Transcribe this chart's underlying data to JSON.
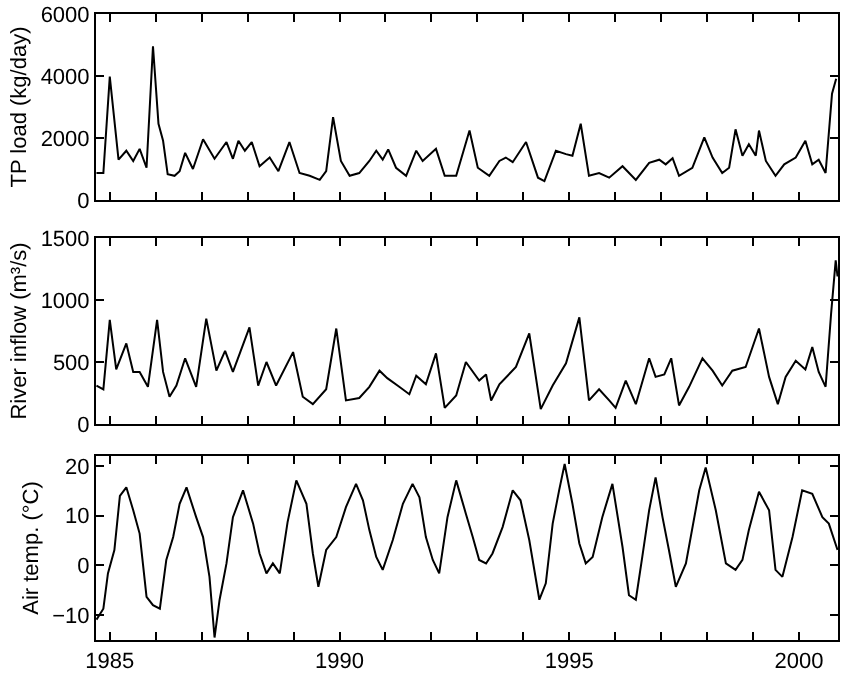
{
  "chart_data": [
    {
      "type": "line",
      "ylabel": "TP load (kg/day)",
      "tick_labels": "y",
      "xlim": [
        1984.7,
        2000.85
      ],
      "ylim": [
        0,
        6000
      ],
      "yticks": [
        0,
        2000,
        4000,
        6000
      ],
      "xticks": [
        {
          "value": 1985,
          "label": null
        },
        {
          "value": 1986,
          "label": null
        },
        {
          "value": 1987,
          "label": null
        },
        {
          "value": 1988,
          "label": null
        },
        {
          "value": 1989,
          "label": null
        },
        {
          "value": 1990,
          "label": null
        },
        {
          "value": 1991,
          "label": null
        },
        {
          "value": 1992,
          "label": null
        },
        {
          "value": 1993,
          "label": null
        },
        {
          "value": 1994,
          "label": null
        },
        {
          "value": 1995,
          "label": null
        },
        {
          "value": 1996,
          "label": null
        },
        {
          "value": 1997,
          "label": null
        },
        {
          "value": 1998,
          "label": null
        },
        {
          "value": 1999,
          "label": null
        },
        {
          "value": 2000,
          "label": null
        }
      ],
      "x": [
        1984.71,
        1984.86,
        1985.0,
        1985.19,
        1985.36,
        1985.51,
        1985.65,
        1985.8,
        1985.94,
        1986.06,
        1986.16,
        1986.26,
        1986.41,
        1986.52,
        1986.64,
        1986.81,
        1987.03,
        1987.28,
        1987.54,
        1987.68,
        1987.8,
        1987.94,
        1988.09,
        1988.26,
        1988.48,
        1988.67,
        1988.91,
        1989.13,
        1989.35,
        1989.57,
        1989.71,
        1989.86,
        1990.03,
        1990.22,
        1990.43,
        1990.65,
        1990.8,
        1990.94,
        1991.06,
        1991.23,
        1991.45,
        1991.67,
        1991.81,
        1992.1,
        1992.29,
        1992.54,
        1992.83,
        1993.01,
        1993.26,
        1993.48,
        1993.62,
        1993.77,
        1994.06,
        1994.32,
        1994.46,
        1994.71,
        1994.93,
        1995.07,
        1995.25,
        1995.43,
        1995.65,
        1995.87,
        1996.16,
        1996.45,
        1996.74,
        1996.96,
        1997.1,
        1997.25,
        1997.39,
        1997.68,
        1997.94,
        1998.12,
        1998.33,
        1998.48,
        1998.62,
        1998.77,
        1998.91,
        1999.06,
        1999.13,
        1999.28,
        1999.49,
        1999.68,
        1999.93,
        2000.14,
        2000.29,
        2000.43,
        2000.58,
        2000.72,
        2000.81
      ],
      "series": [
        {
          "color": "#000000",
          "values": [
            870,
            870,
            3980,
            1300,
            1590,
            1260,
            1650,
            1040,
            4960,
            2460,
            1910,
            830,
            780,
            930,
            1520,
            1000,
            1960,
            1330,
            1870,
            1330,
            1910,
            1590,
            1870,
            1090,
            1370,
            930,
            1870,
            870,
            780,
            650,
            930,
            2670,
            1260,
            780,
            870,
            1260,
            1590,
            1300,
            1630,
            1040,
            780,
            1590,
            1260,
            1650,
            780,
            780,
            2240,
            1040,
            780,
            1260,
            1370,
            1220,
            1870,
            720,
            610,
            1590,
            1480,
            1430,
            2460,
            780,
            870,
            720,
            1090,
            650,
            1200,
            1300,
            1150,
            1350,
            780,
            1040,
            2020,
            1370,
            870,
            1040,
            2280,
            1430,
            1800,
            1430,
            2240,
            1260,
            780,
            1150,
            1370,
            1910,
            1150,
            1300,
            870,
            3430,
            3910
          ]
        }
      ]
    },
    {
      "type": "line",
      "ylabel": "River inflow (m³/s)",
      "tick_labels": "y",
      "xlim": [
        1984.7,
        2000.85
      ],
      "ylim": [
        0,
        1500
      ],
      "yticks": [
        0,
        500,
        1000,
        1500
      ],
      "xticks": [
        {
          "value": 1985,
          "label": null
        },
        {
          "value": 1986,
          "label": null
        },
        {
          "value": 1987,
          "label": null
        },
        {
          "value": 1988,
          "label": null
        },
        {
          "value": 1989,
          "label": null
        },
        {
          "value": 1990,
          "label": null
        },
        {
          "value": 1991,
          "label": null
        },
        {
          "value": 1992,
          "label": null
        },
        {
          "value": 1993,
          "label": null
        },
        {
          "value": 1994,
          "label": null
        },
        {
          "value": 1995,
          "label": null
        },
        {
          "value": 1996,
          "label": null
        },
        {
          "value": 1997,
          "label": null
        },
        {
          "value": 1998,
          "label": null
        },
        {
          "value": 1999,
          "label": null
        },
        {
          "value": 2000,
          "label": null
        }
      ],
      "x": [
        1984.71,
        1984.86,
        1985.0,
        1985.14,
        1985.36,
        1985.51,
        1985.65,
        1985.83,
        1986.03,
        1986.16,
        1986.3,
        1986.45,
        1986.64,
        1986.88,
        1987.1,
        1987.32,
        1987.51,
        1987.68,
        1987.83,
        1988.04,
        1988.23,
        1988.41,
        1988.62,
        1988.99,
        1989.2,
        1989.42,
        1989.71,
        1989.93,
        1990.14,
        1990.43,
        1990.65,
        1990.87,
        1991.04,
        1991.3,
        1991.52,
        1991.67,
        1991.88,
        1992.1,
        1992.29,
        1992.54,
        1992.75,
        1993.04,
        1993.19,
        1993.3,
        1993.48,
        1993.84,
        1994.13,
        1994.38,
        1994.64,
        1994.93,
        1995.22,
        1995.43,
        1995.65,
        1995.87,
        1996.01,
        1996.23,
        1996.45,
        1996.74,
        1996.88,
        1997.07,
        1997.22,
        1997.39,
        1997.61,
        1997.9,
        1998.12,
        1998.33,
        1998.55,
        1998.84,
        1999.13,
        1999.35,
        1999.54,
        1999.71,
        1999.93,
        2000.14,
        2000.29,
        2000.43,
        2000.58,
        2000.7,
        2000.8,
        2000.84
      ],
      "series": [
        {
          "color": "#000000",
          "values": [
            310,
            280,
            840,
            440,
            650,
            420,
            420,
            300,
            840,
            420,
            220,
            310,
            530,
            300,
            850,
            430,
            590,
            420,
            570,
            780,
            310,
            500,
            310,
            580,
            220,
            160,
            280,
            770,
            190,
            210,
            300,
            430,
            370,
            300,
            240,
            390,
            320,
            570,
            130,
            230,
            500,
            350,
            400,
            190,
            320,
            460,
            730,
            120,
            310,
            490,
            860,
            190,
            280,
            190,
            130,
            350,
            160,
            530,
            380,
            400,
            530,
            150,
            300,
            530,
            430,
            310,
            430,
            460,
            770,
            380,
            160,
            380,
            510,
            440,
            620,
            420,
            300,
            890,
            1320,
            1190
          ]
        }
      ]
    },
    {
      "type": "line",
      "ylabel": "Air temp. (°C)",
      "xlim": [
        1984.7,
        2000.85
      ],
      "ylim": [
        -15,
        22
      ],
      "yticks": [
        {
          "value": -10,
          "label": "−10"
        },
        0,
        10,
        20
      ],
      "xticks": [
        1985,
        {
          "value": 1986,
          "label": null
        },
        {
          "value": 1987,
          "label": null
        },
        {
          "value": 1988,
          "label": null
        },
        {
          "value": 1989,
          "label": null
        },
        1990,
        {
          "value": 1991,
          "label": null
        },
        {
          "value": 1992,
          "label": null
        },
        {
          "value": 1993,
          "label": null
        },
        {
          "value": 1994,
          "label": null
        },
        1995,
        {
          "value": 1996,
          "label": null
        },
        {
          "value": 1997,
          "label": null
        },
        {
          "value": 1998,
          "label": null
        },
        {
          "value": 1999,
          "label": null
        },
        2000
      ],
      "x": [
        1984.71,
        1984.86,
        1984.96,
        1985.1,
        1985.22,
        1985.36,
        1985.51,
        1985.65,
        1985.8,
        1985.94,
        1986.09,
        1986.23,
        1986.38,
        1986.52,
        1986.67,
        1986.88,
        1987.03,
        1987.17,
        1987.28,
        1987.39,
        1987.54,
        1987.68,
        1987.9,
        1988.12,
        1988.26,
        1988.41,
        1988.55,
        1988.7,
        1988.87,
        1989.06,
        1989.28,
        1989.42,
        1989.54,
        1989.71,
        1989.93,
        1990.14,
        1990.36,
        1990.51,
        1990.65,
        1990.8,
        1990.94,
        1991.16,
        1991.38,
        1991.59,
        1991.74,
        1991.88,
        1992.03,
        1992.17,
        1992.35,
        1992.54,
        1992.75,
        1992.9,
        1993.04,
        1993.19,
        1993.33,
        1993.55,
        1993.77,
        1993.94,
        1994.13,
        1994.35,
        1994.49,
        1994.64,
        1994.78,
        1994.9,
        1995.07,
        1995.22,
        1995.36,
        1995.51,
        1995.72,
        1995.94,
        1996.16,
        1996.3,
        1996.45,
        1996.59,
        1996.74,
        1996.88,
        1997.03,
        1997.17,
        1997.32,
        1997.54,
        1997.83,
        1997.97,
        1998.19,
        1998.41,
        1998.62,
        1998.77,
        1998.91,
        1999.13,
        1999.35,
        1999.49,
        1999.64,
        1999.86,
        2000.07,
        2000.29,
        2000.51,
        2000.65,
        2000.84
      ],
      "series": [
        {
          "color": "#000000",
          "values": [
            -10.9,
            -8.7,
            -1.6,
            3.1,
            14.0,
            15.7,
            11.1,
            6.4,
            -6.3,
            -8.0,
            -8.7,
            1.1,
            5.7,
            12.4,
            15.7,
            9.7,
            5.7,
            -2.3,
            -14.5,
            -6.9,
            0.4,
            9.7,
            15.1,
            8.4,
            2.4,
            -1.6,
            0.4,
            -1.6,
            8.7,
            17.1,
            12.4,
            2.4,
            -4.3,
            3.1,
            5.7,
            11.7,
            16.4,
            13.1,
            7.1,
            1.7,
            -0.9,
            5.1,
            12.4,
            16.4,
            13.7,
            5.7,
            1.1,
            -1.6,
            9.7,
            17.1,
            10.4,
            5.7,
            1.1,
            0.4,
            2.4,
            7.7,
            15.1,
            13.1,
            5.1,
            -6.9,
            -3.6,
            8.4,
            15.1,
            20.4,
            12.4,
            4.4,
            0.4,
            1.7,
            9.7,
            16.4,
            3.7,
            -6.0,
            -6.9,
            1.7,
            11.1,
            17.7,
            9.7,
            3.1,
            -4.3,
            0.4,
            15.1,
            19.7,
            11.1,
            0.4,
            -0.9,
            1.1,
            7.1,
            14.8,
            11.1,
            -0.9,
            -2.3,
            5.7,
            15.1,
            14.4,
            9.7,
            8.4,
            3.1
          ]
        }
      ]
    }
  ]
}
